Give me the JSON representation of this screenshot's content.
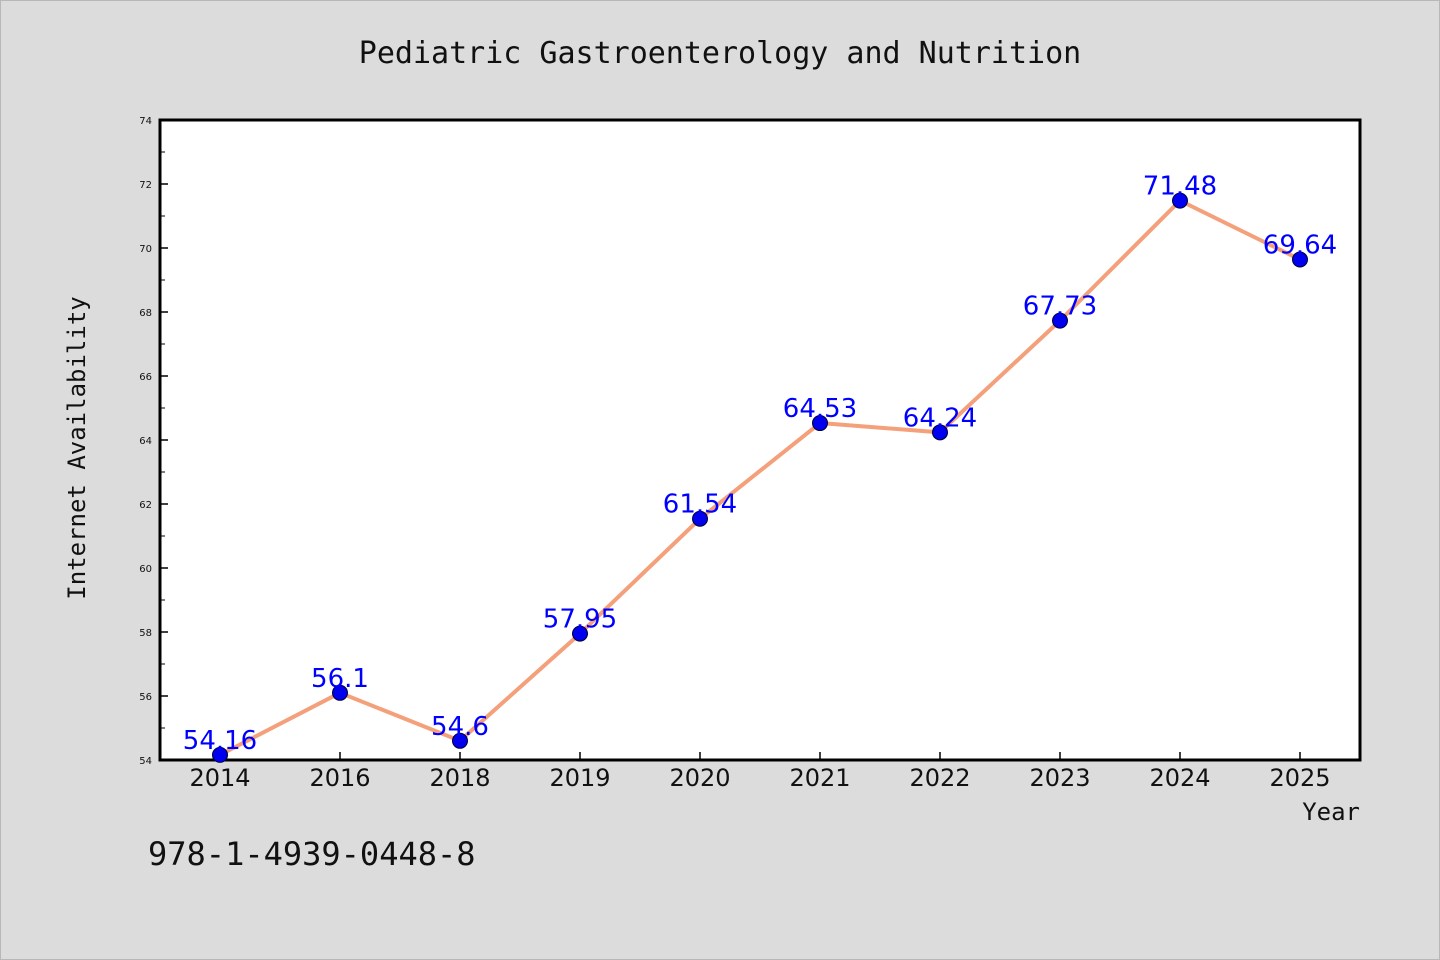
{
  "chart_data": {
    "type": "line",
    "title": "Pediatric Gastroenterology and Nutrition",
    "xlabel": "Year",
    "ylabel": "Internet Availability",
    "categories": [
      "2014",
      "2016",
      "2018",
      "2019",
      "2020",
      "2021",
      "2022",
      "2023",
      "2024",
      "2025"
    ],
    "series": [
      {
        "values": [
          54.16,
          56.1,
          54.6,
          57.95,
          61.54,
          64.53,
          64.24,
          67.73,
          71.48,
          69.64
        ],
        "data_labels": [
          "54.16",
          "56.1",
          "54.6",
          "57.95",
          "61.54",
          "64.53",
          "64.24",
          "67.73",
          "71.48",
          "69.64"
        ],
        "line_color": "#f4a07a",
        "marker_color": "#0000ee"
      }
    ],
    "ylim": [
      54,
      74
    ],
    "yticks": [
      "54",
      "56",
      "58",
      "60",
      "62",
      "64",
      "66",
      "68",
      "70",
      "72",
      "74"
    ],
    "grid": false,
    "legend": false
  },
  "footnote": "978-1-4939-0448-8"
}
